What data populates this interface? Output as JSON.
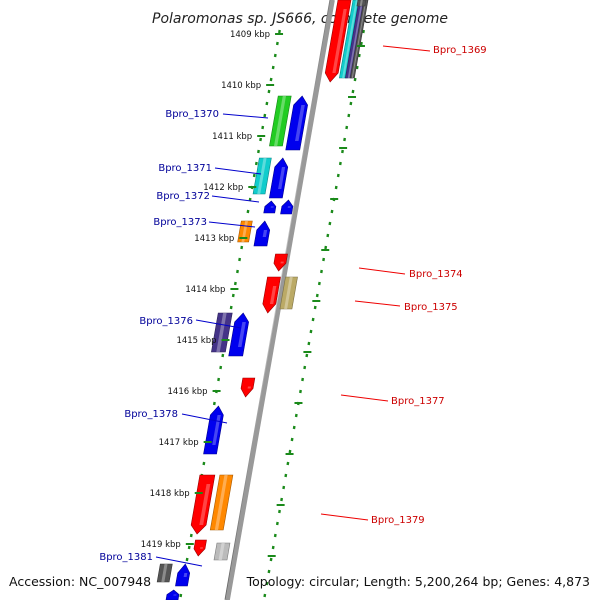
{
  "title": "Polaromonas sp. JS666, complete genome",
  "footer": {
    "accession": "Accession: NC_007948",
    "topology": "Topology: circular; Length: 5,200,264 bp; Genes: 4,873"
  },
  "ruler": [
    {
      "label": "1409 kbp",
      "kbp": 1409
    },
    {
      "label": "1410 kbp",
      "kbp": 1410
    },
    {
      "label": "1411 kbp",
      "kbp": 1411
    },
    {
      "label": "1412 kbp",
      "kbp": 1412
    },
    {
      "label": "1413 kbp",
      "kbp": 1413
    },
    {
      "label": "1414 kbp",
      "kbp": 1414
    },
    {
      "label": "1415 kbp",
      "kbp": 1415
    },
    {
      "label": "1416 kbp",
      "kbp": 1416
    },
    {
      "label": "1417 kbp",
      "kbp": 1417
    },
    {
      "label": "1418 kbp",
      "kbp": 1418
    },
    {
      "label": "1419 kbp",
      "kbp": 1419
    }
  ],
  "genes": [
    {
      "name": "Bpro_1369",
      "strand": "+",
      "label_side": "right",
      "color": "#ff0000",
      "label_color": "#cc0000"
    },
    {
      "name": "Bpro_1370",
      "strand": "-",
      "label_side": "left",
      "color": "#0000ee",
      "label_color": "#000099"
    },
    {
      "name": "Bpro_1371",
      "strand": "-",
      "label_side": "left",
      "color": "#0000ee",
      "label_color": "#000099"
    },
    {
      "name": "Bpro_1372",
      "strand": "-",
      "label_side": "left",
      "color": "#0000ee",
      "label_color": "#000099"
    },
    {
      "name": "Bpro_1373",
      "strand": "-",
      "label_side": "left",
      "color": "#0000ee",
      "label_color": "#000099"
    },
    {
      "name": "Bpro_1374",
      "strand": "+",
      "label_side": "right",
      "color": "#ff0000",
      "label_color": "#cc0000"
    },
    {
      "name": "Bpro_1375",
      "strand": "+",
      "label_side": "right",
      "color": "#ff0000",
      "label_color": "#cc0000"
    },
    {
      "name": "Bpro_1376",
      "strand": "-",
      "label_side": "left",
      "color": "#0000ee",
      "label_color": "#000099"
    },
    {
      "name": "Bpro_1377",
      "strand": "+",
      "label_side": "right",
      "color": "#ff0000",
      "label_color": "#cc0000"
    },
    {
      "name": "Bpro_1378",
      "strand": "-",
      "label_side": "left",
      "color": "#0000ee",
      "label_color": "#000099"
    },
    {
      "name": "Bpro_1379",
      "strand": "+",
      "label_side": "right",
      "color": "#ff0000",
      "label_color": "#cc0000"
    },
    {
      "name": "Bpro_1381",
      "strand": "-",
      "label_side": "left",
      "color": "#0000ee",
      "label_color": "#000099"
    }
  ],
  "colors": {
    "backbone": "#8a8a8a",
    "ruler_dots": "#1a8a1a",
    "forward_gene": "#ff0000",
    "reverse_gene": "#0000ee",
    "cog_green": "#22cc22",
    "cog_cyan": "#11cccc",
    "cog_orange": "#ff8800",
    "cog_purple": "#443388",
    "cog_khaki": "#bbaa66",
    "cog_grey": "#555555",
    "cog_lightgrey": "#bbbbbb"
  }
}
